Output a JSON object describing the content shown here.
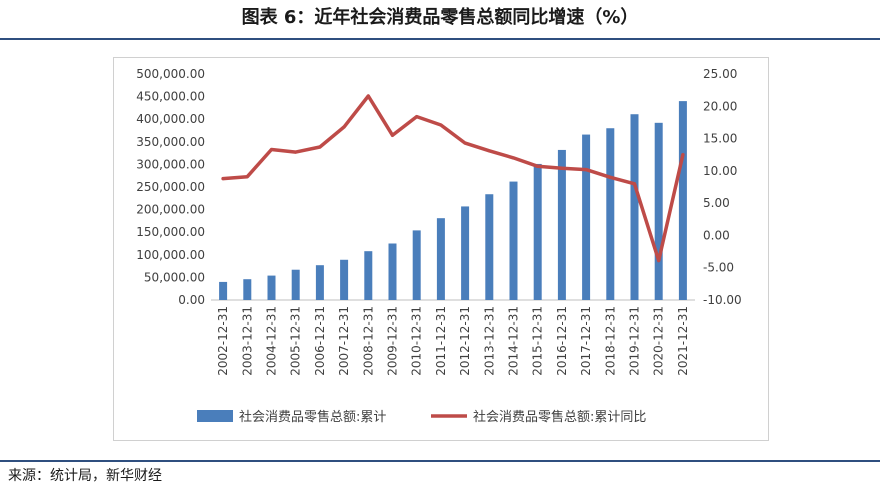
{
  "title": "图表 6：近年社会消费品零售总额同比增速（%）",
  "source": "来源：统计局，新华财经",
  "colors": {
    "bar": "#4a7ebb",
    "line": "#be4b48",
    "grid": "#d9d9d9",
    "text": "#404040",
    "rule": "#2f4f7f"
  },
  "chart_data": {
    "type": "bar+line",
    "categories": [
      "2002-12-31",
      "2003-12-31",
      "2004-12-31",
      "2005-12-31",
      "2006-12-31",
      "2007-12-31",
      "2008-12-31",
      "2009-12-31",
      "2010-12-31",
      "2011-12-31",
      "2012-12-31",
      "2013-12-31",
      "2014-12-31",
      "2015-12-31",
      "2016-12-31",
      "2017-12-31",
      "2018-12-31",
      "2019-12-31",
      "2020-12-31",
      "2021-12-31"
    ],
    "series": [
      {
        "name": "社会消费品零售总额:累计",
        "type": "bar",
        "axis": "left",
        "values": [
          40000,
          46000,
          54000,
          67000,
          77000,
          89000,
          108000,
          125000,
          154000,
          181000,
          207000,
          234000,
          262000,
          301000,
          332000,
          366000,
          380000,
          411000,
          392000,
          440000
        ]
      },
      {
        "name": "社会消费品零售总额:累计同比",
        "type": "line",
        "axis": "right",
        "values": [
          8.8,
          9.1,
          13.3,
          12.9,
          13.7,
          16.8,
          21.6,
          15.5,
          18.4,
          17.1,
          14.3,
          13.1,
          12.0,
          10.7,
          10.4,
          10.2,
          9.0,
          8.0,
          -3.9,
          12.5
        ]
      }
    ],
    "y_left": {
      "min": 0,
      "max": 500000,
      "ticks": [
        "0.00",
        "50,000.00",
        "100,000.00",
        "150,000.00",
        "200,000.00",
        "250,000.00",
        "300,000.00",
        "350,000.00",
        "400,000.00",
        "450,000.00",
        "500,000.00"
      ]
    },
    "y_right": {
      "min": -10,
      "max": 25,
      "ticks": [
        "-10.00",
        "-5.00",
        "0.00",
        "5.00",
        "10.00",
        "15.00",
        "20.00",
        "25.00"
      ]
    },
    "grid": false,
    "legend": "bottom"
  }
}
